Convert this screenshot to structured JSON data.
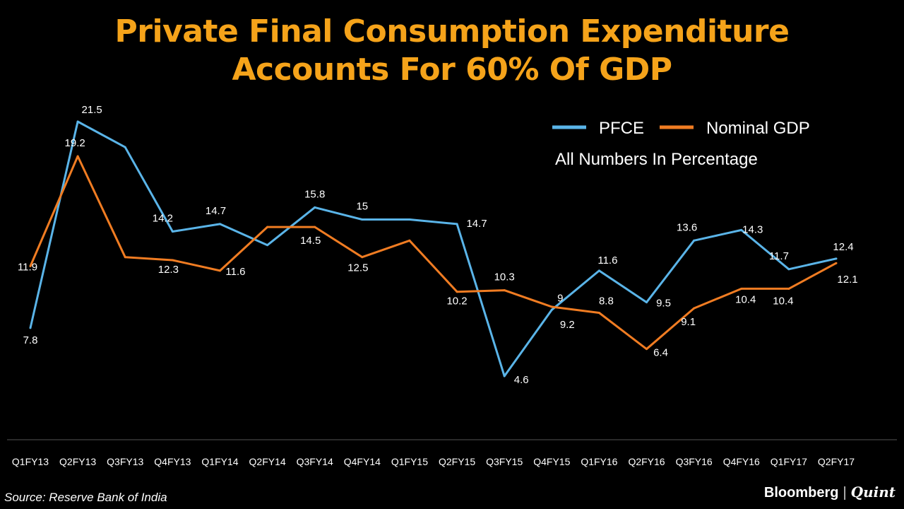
{
  "chart_data": {
    "type": "line",
    "title_line1": "Private Final Consumption Expenditure",
    "title_line2": "Accounts For 60% Of GDP",
    "categories": [
      "Q1FY13",
      "Q2FY13",
      "Q3FY13",
      "Q4FY13",
      "Q1FY14",
      "Q2FY14",
      "Q3FY14",
      "Q4FY14",
      "Q1FY15",
      "Q2FY15",
      "Q3FY15",
      "Q4FY15",
      "Q1FY16",
      "Q2FY16",
      "Q3FY16",
      "Q4FY16",
      "Q1FY17",
      "Q2FY17"
    ],
    "series": [
      {
        "name": "PFCE",
        "color": "#5ab4e8",
        "values": [
          7.8,
          21.5,
          19.8,
          14.2,
          14.7,
          13.3,
          15.8,
          15,
          15,
          14.7,
          4.6,
          9,
          11.6,
          9.5,
          13.6,
          14.3,
          11.7,
          12.4
        ],
        "labels": [
          "7.8",
          "21.5",
          "",
          "14.2",
          "14.7",
          "",
          "15.8",
          "15",
          "",
          "14.7",
          "4.6",
          "9",
          "11.6",
          "9.5",
          "13.6",
          "14.3",
          "11.7",
          "12.4"
        ]
      },
      {
        "name": "Nominal GDP",
        "color": "#f07c22",
        "values": [
          11.9,
          19.2,
          12.5,
          12.3,
          11.6,
          14.5,
          14.5,
          12.5,
          13.6,
          10.2,
          10.3,
          9.2,
          8.8,
          6.4,
          9.1,
          10.4,
          10.4,
          12.1
        ],
        "labels": [
          "11.9",
          "19.2",
          "",
          "12.3",
          "11.6",
          "",
          "14.5",
          "12.5",
          "",
          "10.2",
          "10.3",
          "9.2",
          "8.8",
          "6.4",
          "9.1",
          "10.4",
          "10.4",
          "12.1"
        ]
      }
    ],
    "note": "All Numbers In Percentage",
    "ylim": [
      0,
      24
    ],
    "legend": "top-right",
    "grid": false
  },
  "footer": {
    "source": "Source:  Reserve Bank of India",
    "brand_left": "Bloomberg",
    "brand_sep": "|",
    "brand_right": "Quint"
  }
}
